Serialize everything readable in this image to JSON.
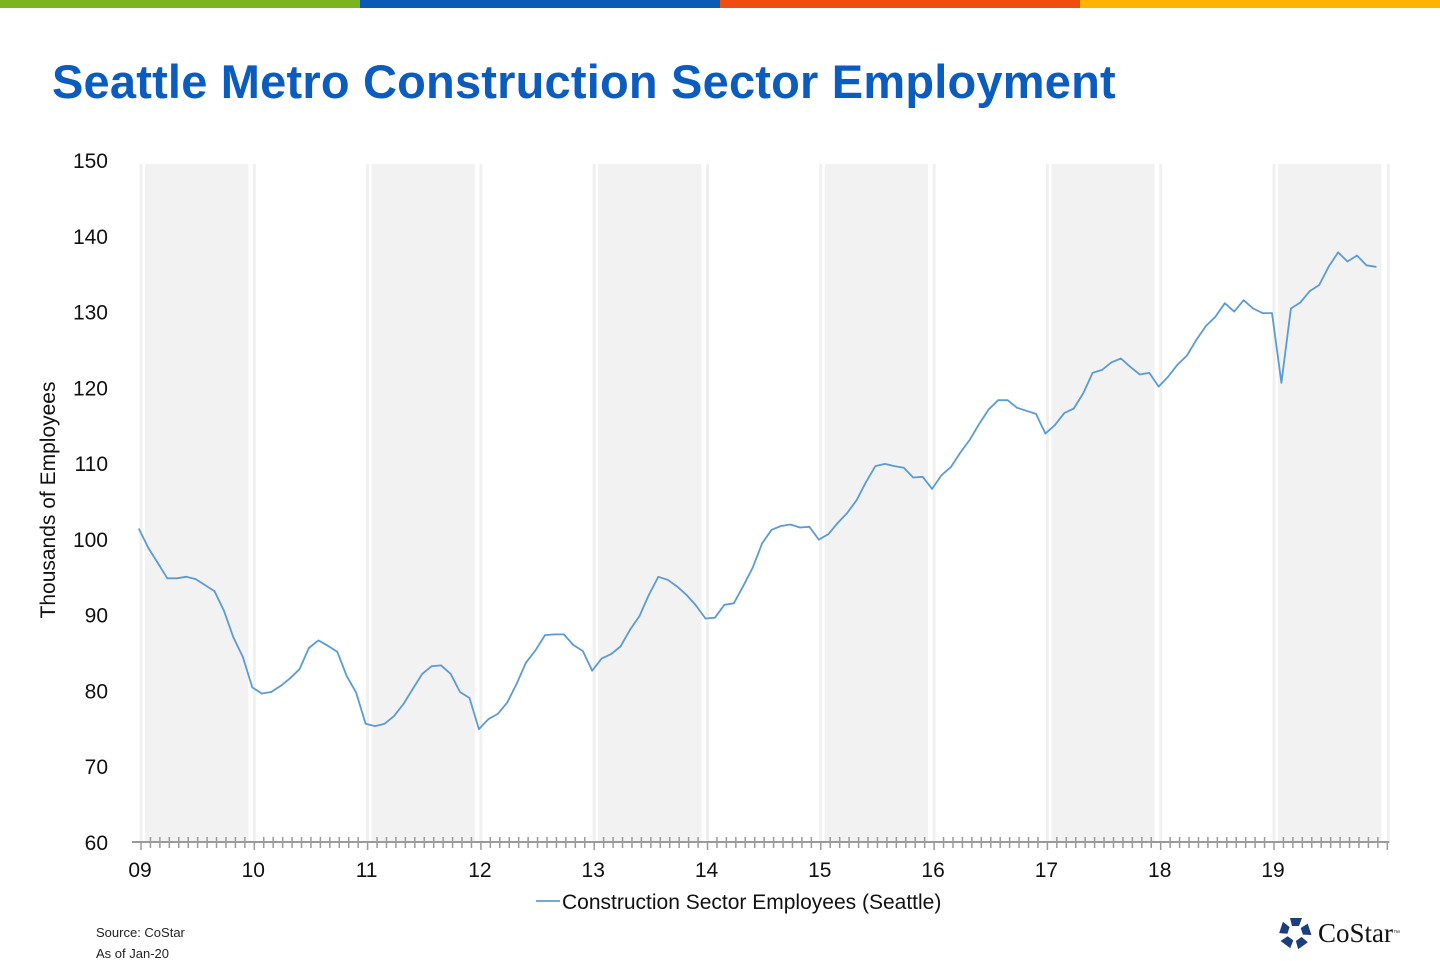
{
  "brand_bar_colors": [
    "#7ab51d",
    "#0a5bb5",
    "#f04e0f",
    "#ffb300"
  ],
  "title": "Seattle Metro Construction Sector Employment",
  "footer": {
    "source": "Source: CoStar",
    "as_of": "As of Jan-20"
  },
  "logo": {
    "text": "CoStar",
    "tm": "™",
    "color": "#1c3f7c"
  },
  "chart_data": {
    "type": "line",
    "title": "Seattle Metro Construction Sector Employment",
    "ylabel": "Thousands of Employees",
    "xlabel": "",
    "ylim": [
      60,
      150
    ],
    "yticks": [
      60,
      70,
      80,
      90,
      100,
      110,
      120,
      130,
      140,
      150
    ],
    "xticks": [
      "09",
      "10",
      "11",
      "12",
      "13",
      "14",
      "15",
      "16",
      "17",
      "18",
      "19"
    ],
    "x_start": "2009-01",
    "x_frequency": "monthly",
    "shaded_years": [
      "09",
      "11",
      "13",
      "15",
      "17",
      "19"
    ],
    "legend": "bottom",
    "line_color": "#5b9bd5",
    "series": [
      {
        "name": "Construction Sector Employees (Seattle)",
        "values": [
          101.3,
          98.8,
          96.8,
          94.8,
          94.8,
          95.0,
          94.7,
          93.9,
          93.1,
          90.5,
          87.0,
          84.4,
          80.4,
          79.6,
          79.8,
          80.6,
          81.6,
          82.8,
          85.6,
          86.6,
          85.9,
          85.1,
          81.9,
          79.7,
          75.6,
          75.3,
          75.6,
          76.6,
          78.2,
          80.2,
          82.2,
          83.2,
          83.3,
          82.2,
          79.8,
          79.0,
          74.9,
          76.2,
          76.9,
          78.4,
          80.9,
          83.7,
          85.3,
          87.3,
          87.4,
          87.4,
          86.0,
          85.2,
          82.6,
          84.2,
          84.8,
          85.8,
          88.0,
          89.8,
          92.6,
          95.0,
          94.6,
          93.7,
          92.6,
          91.2,
          89.5,
          89.6,
          91.3,
          91.5,
          93.8,
          96.2,
          99.4,
          101.2,
          101.7,
          101.9,
          101.5,
          101.6,
          99.9,
          100.6,
          102.1,
          103.4,
          105.1,
          107.5,
          109.6,
          109.9,
          109.6,
          109.4,
          108.1,
          108.2,
          106.6,
          108.4,
          109.5,
          111.4,
          113.1,
          115.2,
          117.1,
          118.3,
          118.3,
          117.3,
          116.9,
          116.5,
          113.9,
          115.0,
          116.6,
          117.2,
          119.2,
          121.9,
          122.3,
          123.3,
          123.8,
          122.7,
          121.7,
          121.9,
          120.1,
          121.4,
          123.0,
          124.2,
          126.3,
          128.1,
          129.3,
          131.1,
          130.0,
          131.5,
          130.4,
          129.8,
          129.8,
          120.6,
          130.4,
          131.2,
          132.7,
          133.5,
          135.9,
          137.8,
          136.6,
          137.4,
          136.1,
          135.9
        ]
      }
    ]
  }
}
